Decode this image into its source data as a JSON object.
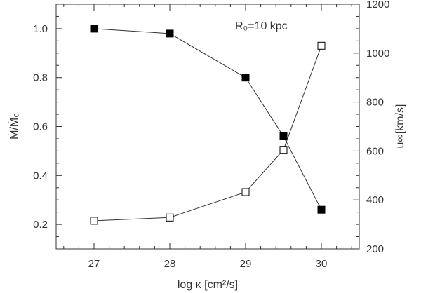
{
  "chart_data": {
    "type": "line",
    "annotation": "R₀=10 kpc",
    "xlabel": "log κ [cm²/s]",
    "ylabel": "Ṁ/Ṁ₀",
    "y2label": "u∞[km/s]",
    "xlim": [
      26.5,
      30.5
    ],
    "ylim": [
      0.1,
      1.1
    ],
    "y2lim": [
      200,
      1200
    ],
    "x_ticks": [
      27,
      28,
      29,
      30
    ],
    "y_ticks": [
      0.2,
      0.4,
      0.6,
      0.8,
      1.0
    ],
    "y2_ticks": [
      200,
      400,
      600,
      800,
      1000,
      1200
    ],
    "grid": false,
    "series": [
      {
        "axis": "left",
        "marker": "filled-square",
        "x": [
          27,
          28,
          29,
          29.5,
          30
        ],
        "y": [
          1.0,
          0.98,
          0.8,
          0.56,
          0.26
        ]
      },
      {
        "axis": "right",
        "marker": "open-square",
        "x": [
          27,
          28,
          29,
          29.5,
          30
        ],
        "y": [
          315,
          328,
          432,
          605,
          1030
        ]
      }
    ]
  }
}
